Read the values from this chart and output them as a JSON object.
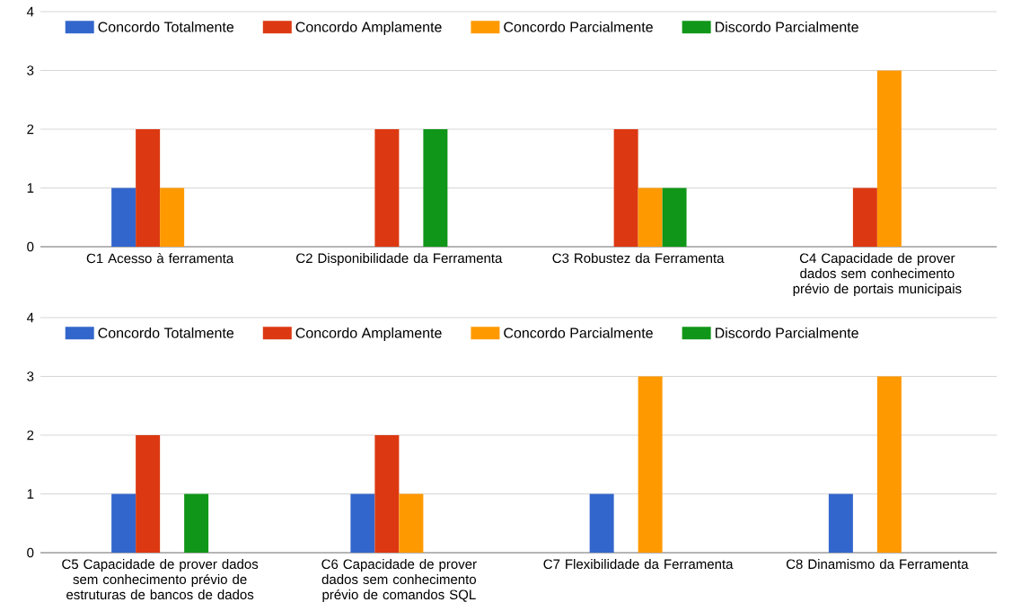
{
  "chart_data": [
    {
      "type": "bar",
      "categories": [
        "C1  Acesso à ferramenta",
        "C2  Disponibilidade da Ferramenta",
        "C3 Robustez da Ferramenta",
        "C4 Capacidade de prover dados sem conhecimento prévio de portais municipais"
      ],
      "series": [
        {
          "name": "Concordo Totalmente",
          "color": "#3366cc",
          "values": [
            1,
            null,
            null,
            null
          ]
        },
        {
          "name": "Concordo Amplamente",
          "color": "#dc3912",
          "values": [
            2,
            2,
            2,
            1
          ]
        },
        {
          "name": "Concordo Parcialmente",
          "color": "#ff9900",
          "values": [
            1,
            null,
            1,
            3
          ]
        },
        {
          "name": "Discordo Parcialmente",
          "color": "#109618",
          "values": [
            null,
            2,
            1,
            null
          ]
        }
      ],
      "ylim": [
        0,
        4
      ],
      "yticks": [
        0,
        1,
        2,
        3,
        4
      ],
      "grid": "y",
      "legend": "top left"
    },
    {
      "type": "bar",
      "categories": [
        "C5 Capacidade de prover dados sem conhecimento prévio de estruturas de bancos de dados",
        "C6 Capacidade de prover dados sem conhecimento prévio de comandos SQL",
        "C7 Flexibilidade da Ferramenta",
        "C8 Dinamismo da Ferramenta"
      ],
      "series": [
        {
          "name": "Concordo Totalmente",
          "color": "#3366cc",
          "values": [
            1,
            1,
            1,
            1
          ]
        },
        {
          "name": "Concordo Amplamente",
          "color": "#dc3912",
          "values": [
            2,
            2,
            null,
            null
          ]
        },
        {
          "name": "Concordo Parcialmente",
          "color": "#ff9900",
          "values": [
            null,
            1,
            3,
            3
          ]
        },
        {
          "name": "Discordo Parcialmente",
          "color": "#109618",
          "values": [
            1,
            null,
            null,
            null
          ]
        }
      ],
      "ylim": [
        0,
        4
      ],
      "yticks": [
        0,
        1,
        2,
        3,
        4
      ],
      "grid": "y",
      "legend": "top left"
    }
  ]
}
